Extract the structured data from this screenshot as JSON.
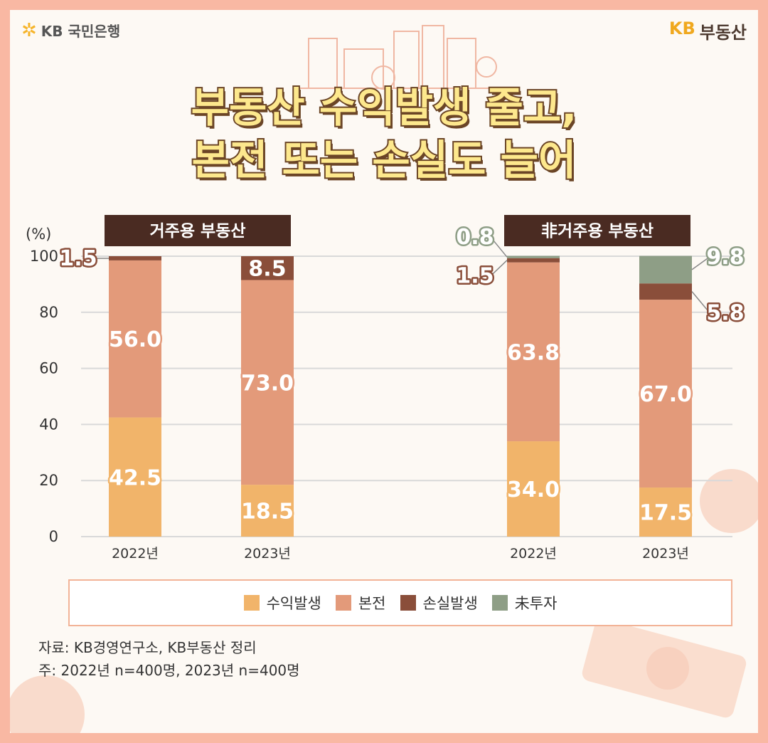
{
  "brand": {
    "bank": "KB 국민은행",
    "kb": "KB",
    "realestate": "부동산"
  },
  "title": {
    "line1": "부동산 수익발생 줄고,",
    "line2": "본전 또는 손실도 늘어"
  },
  "colors": {
    "profit": "#f1b46a",
    "breakeven": "#e39a7a",
    "loss": "#8a4e3a",
    "noinvest": "#8e9e86",
    "header_bg": "#4a2b22"
  },
  "chart_data": {
    "type": "bar",
    "stacked": true,
    "ylabel": "(%)",
    "ylim": [
      0,
      100
    ],
    "yticks": [
      "0",
      "20",
      "40",
      "60",
      "80",
      "100"
    ],
    "groups": [
      {
        "label": "거주용 부동산",
        "categories": [
          "2022년",
          "2023년"
        ],
        "series": [
          {
            "name": "수익발생",
            "values": [
              42.5,
              18.5
            ],
            "labels": [
              "42.5",
              "18.5"
            ]
          },
          {
            "name": "본전",
            "values": [
              56.0,
              73.0
            ],
            "labels": [
              "56.0",
              "73.0"
            ]
          },
          {
            "name": "손실발생",
            "values": [
              1.5,
              8.5
            ],
            "labels": [
              "1.5",
              "8.5"
            ]
          },
          {
            "name": "未투자",
            "values": [
              0,
              0
            ],
            "labels": [
              "",
              ""
            ]
          }
        ]
      },
      {
        "label": "非거주용 부동산",
        "categories": [
          "2022년",
          "2023년"
        ],
        "series": [
          {
            "name": "수익발생",
            "values": [
              34.0,
              17.5
            ],
            "labels": [
              "34.0",
              "17.5"
            ]
          },
          {
            "name": "본전",
            "values": [
              63.8,
              67.0
            ],
            "labels": [
              "63.8",
              "67.0"
            ]
          },
          {
            "name": "손실발생",
            "values": [
              1.5,
              5.8
            ],
            "labels": [
              "1.5",
              "5.8"
            ]
          },
          {
            "name": "未투자",
            "values": [
              0.8,
              9.8
            ],
            "labels": [
              "0.8",
              "9.8"
            ]
          }
        ]
      }
    ],
    "legend": [
      "수익발생",
      "본전",
      "손실발생",
      "未투자"
    ]
  },
  "notes": {
    "source": "자료: KB경영연구소, KB부동산 정리",
    "footnote": "주: 2022년 n=400명, 2023년 n=400명"
  }
}
